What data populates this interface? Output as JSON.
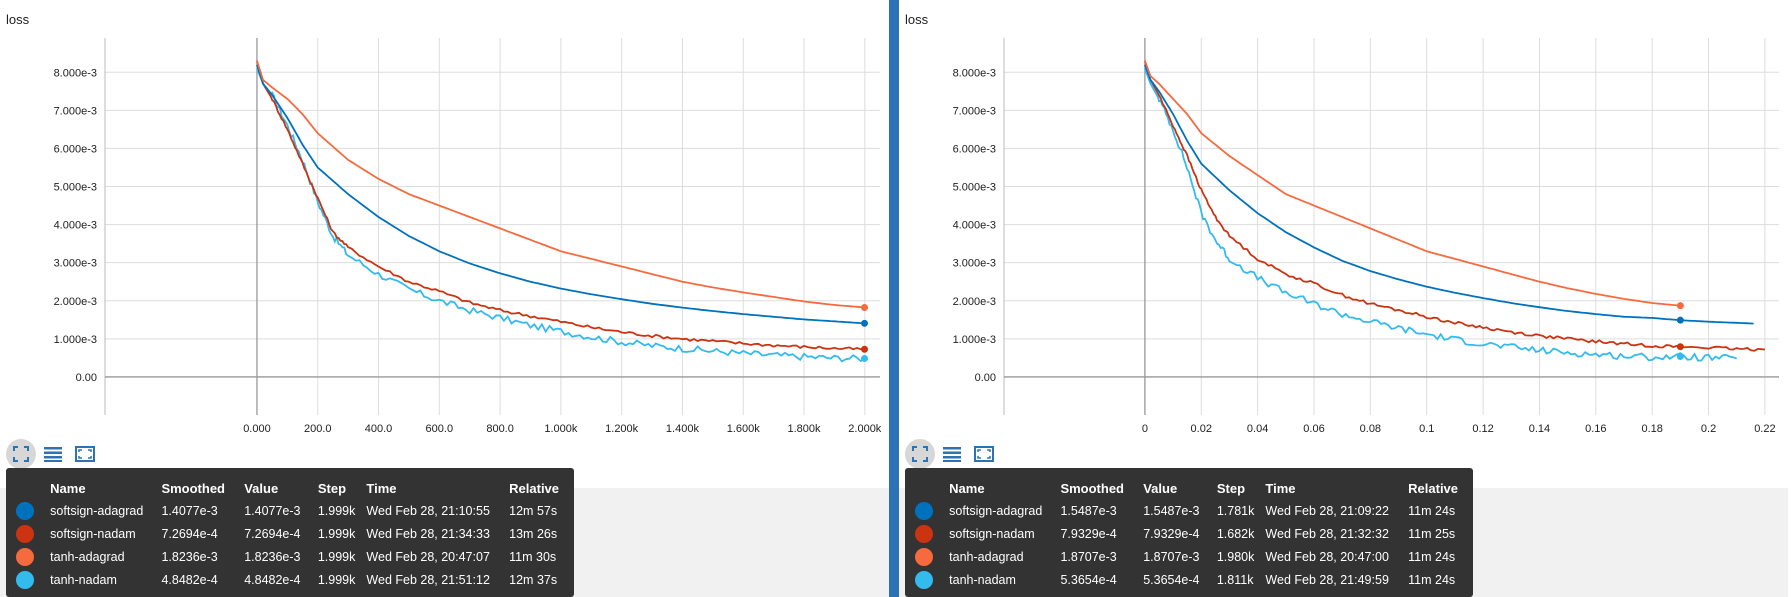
{
  "colors": {
    "softsign-adagrad": "#0072bd",
    "softsign-nadam": "#cc3311",
    "tanh-adagrad": "#f66a3e",
    "tanh-nadam": "#33bbee",
    "divider": "#2b73b5"
  },
  "toolbar": {
    "fit_icon": "fit-domain-icon",
    "log_icon": "list-icon",
    "expand_icon": "expand-icon"
  },
  "charts": [
    {
      "title": "loss",
      "tooltip": {
        "headers": [
          "Name",
          "Smoothed",
          "Value",
          "Step",
          "Time",
          "Relative"
        ],
        "rows": [
          {
            "name": "softsign-adagrad",
            "smoothed": "1.4077e-3",
            "value": "1.4077e-3",
            "step": "1.999k",
            "time": "Wed Feb 28, 21:10:55",
            "relative": "12m 57s"
          },
          {
            "name": "softsign-nadam",
            "smoothed": "7.2694e-4",
            "value": "7.2694e-4",
            "step": "1.999k",
            "time": "Wed Feb 28, 21:34:33",
            "relative": "13m 26s"
          },
          {
            "name": "tanh-adagrad",
            "smoothed": "1.8236e-3",
            "value": "1.8236e-3",
            "step": "1.999k",
            "time": "Wed Feb 28, 20:47:07",
            "relative": "11m 30s"
          },
          {
            "name": "tanh-nadam",
            "smoothed": "4.8482e-4",
            "value": "4.8482e-4",
            "step": "1.999k",
            "time": "Wed Feb 28, 21:51:12",
            "relative": "12m 37s"
          }
        ]
      }
    },
    {
      "title": "loss",
      "tooltip": {
        "headers": [
          "Name",
          "Smoothed",
          "Value",
          "Step",
          "Time",
          "Relative"
        ],
        "rows": [
          {
            "name": "softsign-adagrad",
            "smoothed": "1.5487e-3",
            "value": "1.5487e-3",
            "step": "1.781k",
            "time": "Wed Feb 28, 21:09:22",
            "relative": "11m 24s"
          },
          {
            "name": "softsign-nadam",
            "smoothed": "7.9329e-4",
            "value": "7.9329e-4",
            "step": "1.682k",
            "time": "Wed Feb 28, 21:32:32",
            "relative": "11m 25s"
          },
          {
            "name": "tanh-adagrad",
            "smoothed": "1.8707e-3",
            "value": "1.8707e-3",
            "step": "1.980k",
            "time": "Wed Feb 28, 20:47:00",
            "relative": "11m 24s"
          },
          {
            "name": "tanh-nadam",
            "smoothed": "5.3654e-4",
            "value": "5.3654e-4",
            "step": "1.811k",
            "time": "Wed Feb 28, 21:49:59",
            "relative": "11m 24s"
          }
        ]
      }
    }
  ],
  "chart_data": [
    {
      "type": "line",
      "title": "loss",
      "xlabel": "",
      "ylabel": "",
      "xlim": [
        -500,
        2050
      ],
      "ylim": [
        -0.001,
        0.0089
      ],
      "xticks": [
        0,
        200,
        400,
        600,
        800,
        1000,
        1200,
        1400,
        1600,
        1800,
        2000
      ],
      "xtick_labels": [
        "0.000",
        "200.0",
        "400.0",
        "600.0",
        "800.0",
        "1.000k",
        "1.200k",
        "1.400k",
        "1.600k",
        "1.800k",
        "2.000k"
      ],
      "yticks": [
        0,
        0.001,
        0.002,
        0.003,
        0.004,
        0.005,
        0.006,
        0.007,
        0.008
      ],
      "ytick_labels": [
        "0.00",
        "1.000e-3",
        "2.000e-3",
        "3.000e-3",
        "4.000e-3",
        "5.000e-3",
        "6.000e-3",
        "7.000e-3",
        "8.000e-3"
      ],
      "grid": true,
      "series": [
        {
          "name": "softsign-adagrad",
          "x": [
            0,
            20,
            50,
            100,
            150,
            200,
            300,
            400,
            500,
            600,
            700,
            800,
            900,
            1000,
            1100,
            1200,
            1300,
            1400,
            1500,
            1600,
            1700,
            1800,
            1900,
            1999
          ],
          "y": [
            0.0082,
            0.0077,
            0.0074,
            0.0068,
            0.0061,
            0.0055,
            0.0048,
            0.0042,
            0.0037,
            0.0033,
            0.00298,
            0.00272,
            0.0025,
            0.00232,
            0.00217,
            0.00204,
            0.00192,
            0.00182,
            0.00173,
            0.00165,
            0.00158,
            0.00151,
            0.00146,
            0.0014077
          ],
          "noise": 0
        },
        {
          "name": "softsign-nadam",
          "x": [
            0,
            20,
            50,
            100,
            150,
            200,
            250,
            300,
            400,
            500,
            600,
            700,
            800,
            900,
            1000,
            1100,
            1200,
            1300,
            1400,
            1500,
            1600,
            1700,
            1800,
            1900,
            1999
          ],
          "y": [
            0.0083,
            0.0077,
            0.0073,
            0.0065,
            0.0056,
            0.0047,
            0.0038,
            0.0034,
            0.0029,
            0.0025,
            0.00225,
            0.00195,
            0.00175,
            0.0016,
            0.00145,
            0.0013,
            0.00118,
            0.00108,
            0.001,
            0.00094,
            0.00088,
            0.00083,
            0.00079,
            0.00075,
            0.00072694
          ],
          "noise": 4e-05
        },
        {
          "name": "tanh-adagrad",
          "x": [
            0,
            20,
            50,
            100,
            150,
            200,
            300,
            400,
            500,
            600,
            700,
            800,
            900,
            1000,
            1100,
            1200,
            1300,
            1400,
            1500,
            1600,
            1700,
            1800,
            1900,
            1999
          ],
          "y": [
            0.0083,
            0.0078,
            0.0076,
            0.0073,
            0.0069,
            0.0064,
            0.0057,
            0.0052,
            0.0048,
            0.0045,
            0.0042,
            0.0039,
            0.0036,
            0.0033,
            0.0031,
            0.0029,
            0.0027,
            0.0025,
            0.00235,
            0.00222,
            0.0021,
            0.00198,
            0.00189,
            0.0018236
          ],
          "noise": 0
        },
        {
          "name": "tanh-nadam",
          "x": [
            0,
            20,
            50,
            100,
            150,
            200,
            250,
            300,
            400,
            500,
            600,
            700,
            800,
            900,
            1000,
            1100,
            1200,
            1300,
            1400,
            1500,
            1600,
            1700,
            1800,
            1900,
            1999
          ],
          "y": [
            0.0081,
            0.0077,
            0.0074,
            0.0066,
            0.0057,
            0.0046,
            0.0037,
            0.0032,
            0.0027,
            0.0023,
            0.002,
            0.00175,
            0.00155,
            0.00135,
            0.0012,
            0.00105,
            0.00092,
            0.00082,
            0.00075,
            0.00068,
            0.00062,
            0.00057,
            0.00053,
            0.0005,
            0.00048482
          ],
          "noise": 9e-05
        }
      ]
    },
    {
      "type": "line",
      "title": "loss",
      "xlabel": "",
      "ylabel": "",
      "xlim": [
        -0.05,
        0.225
      ],
      "ylim": [
        -0.001,
        0.0089
      ],
      "xticks": [
        0,
        0.02,
        0.04,
        0.06,
        0.08,
        0.1,
        0.12,
        0.14,
        0.16,
        0.18,
        0.2,
        0.22
      ],
      "xtick_labels": [
        "0",
        "0.02",
        "0.04",
        "0.06",
        "0.08",
        "0.1",
        "0.12",
        "0.14",
        "0.16",
        "0.18",
        "0.2",
        "0.22"
      ],
      "yticks": [
        0,
        0.001,
        0.002,
        0.003,
        0.004,
        0.005,
        0.006,
        0.007,
        0.008
      ],
      "ytick_labels": [
        "0.00",
        "1.000e-3",
        "2.000e-3",
        "3.000e-3",
        "4.000e-3",
        "5.000e-3",
        "6.000e-3",
        "7.000e-3",
        "8.000e-3"
      ],
      "grid": true,
      "series": [
        {
          "name": "softsign-adagrad",
          "x": [
            0,
            0.002,
            0.005,
            0.01,
            0.015,
            0.02,
            0.03,
            0.04,
            0.05,
            0.06,
            0.07,
            0.08,
            0.09,
            0.1,
            0.11,
            0.12,
            0.13,
            0.14,
            0.15,
            0.16,
            0.17,
            0.18,
            0.19,
            0.2,
            0.21,
            0.216
          ],
          "y": [
            0.0082,
            0.0078,
            0.0075,
            0.0069,
            0.0062,
            0.0056,
            0.0049,
            0.0043,
            0.0038,
            0.0034,
            0.00305,
            0.00278,
            0.00256,
            0.00237,
            0.00221,
            0.00207,
            0.00194,
            0.00183,
            0.00173,
            0.00165,
            0.00158,
            0.0015487,
            0.00149,
            0.00145,
            0.00142,
            0.0014
          ],
          "noise": 0
        },
        {
          "name": "softsign-nadam",
          "x": [
            0,
            0.002,
            0.005,
            0.01,
            0.015,
            0.02,
            0.025,
            0.03,
            0.04,
            0.05,
            0.06,
            0.07,
            0.08,
            0.09,
            0.1,
            0.11,
            0.12,
            0.13,
            0.14,
            0.15,
            0.16,
            0.17,
            0.18,
            0.19,
            0.2,
            0.21,
            0.22
          ],
          "y": [
            0.0083,
            0.0078,
            0.0074,
            0.0066,
            0.0058,
            0.0049,
            0.0042,
            0.0037,
            0.0031,
            0.0027,
            0.00245,
            0.00215,
            0.00192,
            0.00175,
            0.00158,
            0.00142,
            0.0013,
            0.00118,
            0.00108,
            0.001,
            0.00093,
            0.00087,
            0.00082,
            0.00079329,
            0.00077,
            0.00073,
            0.00072
          ],
          "noise": 4e-05
        },
        {
          "name": "tanh-adagrad",
          "x": [
            0,
            0.002,
            0.005,
            0.01,
            0.015,
            0.02,
            0.03,
            0.04,
            0.05,
            0.06,
            0.07,
            0.08,
            0.09,
            0.1,
            0.11,
            0.12,
            0.13,
            0.14,
            0.15,
            0.16,
            0.17,
            0.18,
            0.19
          ],
          "y": [
            0.0083,
            0.0079,
            0.0077,
            0.0073,
            0.0069,
            0.0064,
            0.0058,
            0.0053,
            0.0048,
            0.0045,
            0.0042,
            0.0039,
            0.0036,
            0.0033,
            0.0031,
            0.0029,
            0.0027,
            0.0025,
            0.00233,
            0.00218,
            0.00205,
            0.00194,
            0.0018707
          ],
          "noise": 0
        },
        {
          "name": "tanh-nadam",
          "x": [
            0,
            0.002,
            0.005,
            0.01,
            0.015,
            0.02,
            0.025,
            0.03,
            0.04,
            0.05,
            0.06,
            0.07,
            0.08,
            0.09,
            0.1,
            0.11,
            0.12,
            0.13,
            0.14,
            0.15,
            0.16,
            0.17,
            0.18,
            0.19,
            0.2,
            0.21
          ],
          "y": [
            0.0081,
            0.0077,
            0.0073,
            0.0065,
            0.0055,
            0.0043,
            0.0036,
            0.0031,
            0.0026,
            0.0022,
            0.00192,
            0.00165,
            0.00145,
            0.00128,
            0.00112,
            0.00098,
            0.00087,
            0.00078,
            0.0007,
            0.00064,
            0.00059,
            0.00055,
            0.00052,
            0.00053654,
            0.0005,
            0.00048
          ],
          "noise": 9e-05
        }
      ],
      "endpoint_x": 0.19
    }
  ]
}
